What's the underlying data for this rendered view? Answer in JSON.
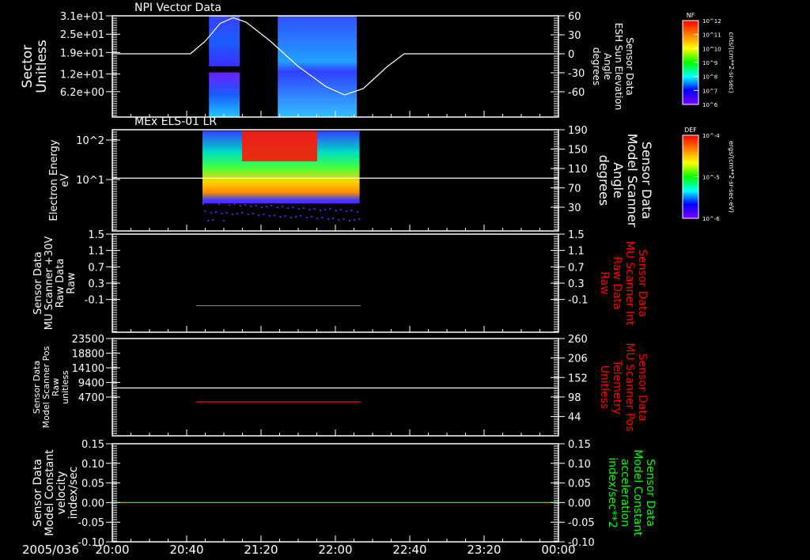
{
  "date_label": "2005/036",
  "time_ticks": [
    "20:00",
    "20:40",
    "21:20",
    "22:00",
    "22:40",
    "23:20",
    "00:00"
  ],
  "colors": {
    "background": "#000000",
    "axis": "#ffffff",
    "red_label": "#ff0000",
    "green_label": "#00ff00",
    "gray_line": "#808080"
  },
  "colorbars": [
    {
      "title": "NF",
      "ticks": [
        "10^12",
        "10^11",
        "10^10",
        "10^9",
        "10^8",
        "10^7",
        "10^6"
      ],
      "unit": "cnts/(cm**2-sr-sec)"
    },
    {
      "title": "DEF",
      "ticks": [
        "10^-4",
        "10^-5",
        "10^-6"
      ],
      "unit": "ergs/(cm**2-sr-sec-eV)"
    }
  ],
  "chart_data": [
    {
      "type": "heatmap",
      "title": "NPI Vector Data",
      "ylabel": [
        "Sector",
        "Unitless"
      ],
      "ylim": [
        -2.1,
        31
      ],
      "yticks": [
        "3.1e+01",
        "2.5e+01",
        "1.9e+01",
        "1.2e+01",
        "6.2e+00"
      ],
      "ytick_values": [
        31,
        25,
        19,
        12,
        6.2
      ],
      "right_label": [
        "Sensor Data",
        "ESH Sun Elevation",
        "Angle",
        "degrees"
      ],
      "right_color": "#ffffff",
      "right_ylim": [
        -100,
        60
      ],
      "right_yticks": [
        "60",
        "30",
        "0",
        "-30",
        "-60"
      ],
      "right_ytick_values": [
        60,
        30,
        0,
        -30,
        -60
      ],
      "blocks": [
        {
          "t0": 52,
          "t1": 68.5,
          "v0": 12.5,
          "v1": -2.1
        },
        {
          "t0": 52,
          "t1": 68.5,
          "v0": 31,
          "v1": 14.5
        },
        {
          "t0": 89,
          "t1": 131.5,
          "v0": 31,
          "v1": -2.1
        }
      ],
      "line": {
        "axis": "right",
        "color": "#ffffff",
        "points": [
          [
            0,
            0
          ],
          [
            42,
            0
          ],
          [
            50,
            20
          ],
          [
            58,
            48
          ],
          [
            65,
            57
          ],
          [
            72,
            50
          ],
          [
            85,
            20
          ],
          [
            100,
            -20
          ],
          [
            115,
            -52
          ],
          [
            125,
            -65
          ],
          [
            135,
            -55
          ],
          [
            148,
            -20
          ],
          [
            157,
            0
          ],
          [
            240,
            0
          ]
        ]
      }
    },
    {
      "type": "heatmap",
      "title": "MEx ELS-01 LR",
      "ylabel": [
        "Electron Energy",
        "eV"
      ],
      "ylim": [
        0.5,
        182
      ],
      "log": true,
      "yticks": [
        "10^2",
        "10^1"
      ],
      "ytick_values": [
        100,
        10
      ],
      "right_label": [
        "Sensor Data",
        "Model Scanner",
        "Angle",
        "degrees"
      ],
      "right_color": "#ffffff",
      "right_ylim": [
        -19,
        190
      ],
      "right_yticks": [
        "190",
        "150",
        "110",
        "70",
        "30"
      ],
      "right_ytick_values": [
        190,
        150,
        110,
        70,
        30
      ],
      "spectrogram": {
        "t0": 48.5,
        "t1": 133,
        "e_low": 2.5,
        "e_high": 170
      },
      "line": {
        "axis": "right",
        "color": "#ffffff",
        "points": [
          [
            0,
            90
          ],
          [
            240,
            90
          ]
        ]
      }
    },
    {
      "type": "line",
      "title": "",
      "ylabel": [
        "Sensor Data",
        "MU Scanner +30V",
        "Raw Data",
        "Raw"
      ],
      "ylim": [
        -0.9,
        1.5
      ],
      "yticks": [
        "1.5",
        "1.1",
        "0.7",
        "0.3",
        "-0.1"
      ],
      "ytick_values": [
        1.5,
        1.1,
        0.7,
        0.3,
        -0.1
      ],
      "right_label": [
        "Sensor Data",
        "MU Scanner Int",
        "Raw Data",
        "Raw"
      ],
      "right_color": "#ff0000",
      "right_ylim": [
        -0.9,
        1.5
      ],
      "right_yticks": [
        "1.5",
        "1.1",
        "0.7",
        "0.3",
        "-0.1"
      ],
      "right_ytick_values": [
        1.5,
        1.1,
        0.7,
        0.3,
        -0.1
      ],
      "line": {
        "axis": "left",
        "color": "#808080",
        "points": [
          [
            45,
            -0.25
          ],
          [
            133.6,
            -0.25
          ]
        ]
      }
    },
    {
      "type": "line",
      "title": "",
      "ylabel": [
        "Sensor Data",
        "Model Scanner Pos",
        "Raw",
        "unitless"
      ],
      "ylim": [
        -7750,
        23500
      ],
      "yticks": [
        "23500",
        "18800",
        "14100",
        "9400",
        "4700"
      ],
      "ytick_values": [
        23500,
        18800,
        14100,
        9400,
        4700
      ],
      "right_label": [
        "Sensor Data",
        "MU Scanner Pos",
        "Telemetry",
        "Unitless"
      ],
      "right_color": "#ff0000",
      "right_ylim": [
        -9.5,
        260
      ],
      "right_yticks": [
        "260",
        "206",
        "152",
        "98",
        "44"
      ],
      "right_ytick_values": [
        260,
        206,
        152,
        98,
        44
      ],
      "line": {
        "axis": "right",
        "color": "#ffffff",
        "points": [
          [
            0,
            123
          ],
          [
            240,
            123
          ]
        ]
      },
      "line2": {
        "axis": "left",
        "color": "#ff0000",
        "points": [
          [
            45,
            3180
          ],
          [
            133.6,
            3180
          ]
        ]
      }
    },
    {
      "type": "line",
      "title": "",
      "ylabel": [
        "Sensor Data",
        "Model Constant",
        "velocity",
        "index/sec"
      ],
      "ylim": [
        -0.1,
        0.15
      ],
      "yticks": [
        "0.15",
        "0.10",
        "0.05",
        "0.00",
        "-0.05",
        "-0.10"
      ],
      "ytick_values": [
        0.15,
        0.1,
        0.05,
        0,
        -0.05,
        -0.1
      ],
      "right_label": [
        "Sensor Data",
        "Model Constant",
        "acceleration",
        "index/sec**2"
      ],
      "right_color": "#00ff00",
      "right_ylim": [
        -0.1,
        0.15
      ],
      "right_yticks": [
        "0.15",
        "0.10",
        "0.05",
        "0.00",
        "-0.05",
        "-0.10"
      ],
      "right_ytick_values": [
        0.15,
        0.1,
        0.05,
        0,
        -0.05,
        -0.1
      ],
      "line": {
        "axis": "left",
        "color": "#00ff00",
        "points": [
          [
            0,
            0
          ],
          [
            240,
            0
          ]
        ]
      }
    }
  ]
}
